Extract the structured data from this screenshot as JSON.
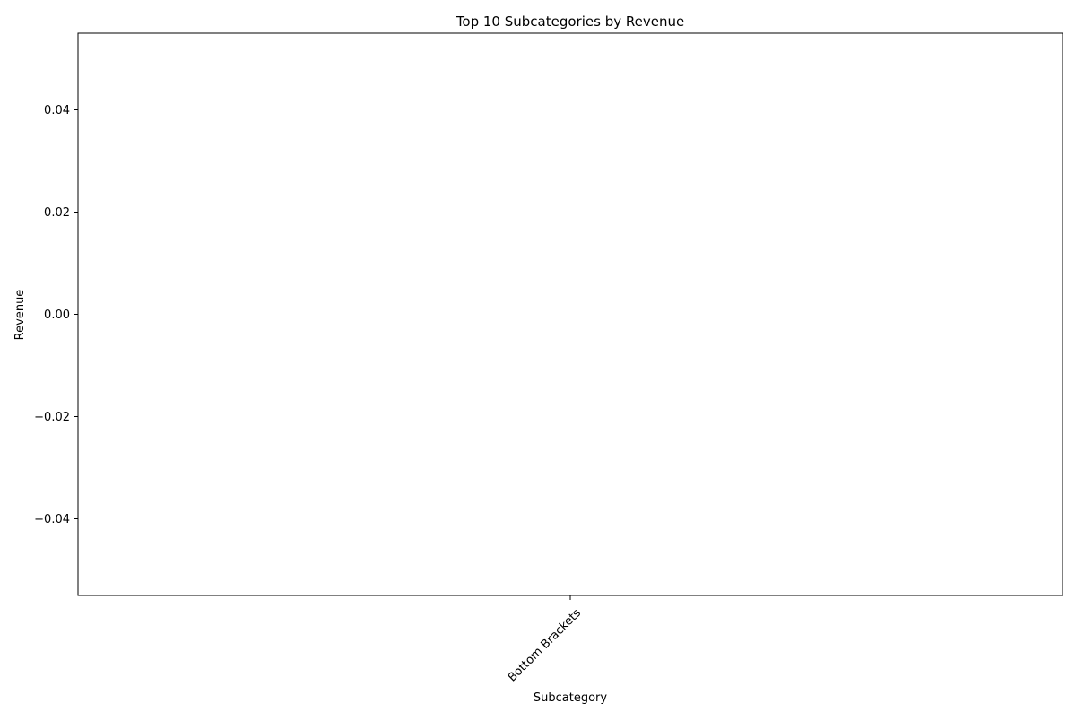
{
  "chart_data": {
    "type": "bar",
    "title": "Top 10 Subcategories by Revenue",
    "xlabel": "Subcategory",
    "ylabel": "Revenue",
    "categories": [
      "Bottom Brackets"
    ],
    "values": [
      0
    ],
    "ylim": [
      -0.055,
      0.055
    ],
    "yticks": [
      -0.04,
      -0.02,
      0.0,
      0.02,
      0.04
    ],
    "ytick_labels": [
      "−0.04",
      "−0.02",
      "0.00",
      "0.02",
      "0.04"
    ],
    "xtick_rotation_deg": 45,
    "grid": false,
    "legend": "none",
    "bar_color": "#1f77b4"
  }
}
